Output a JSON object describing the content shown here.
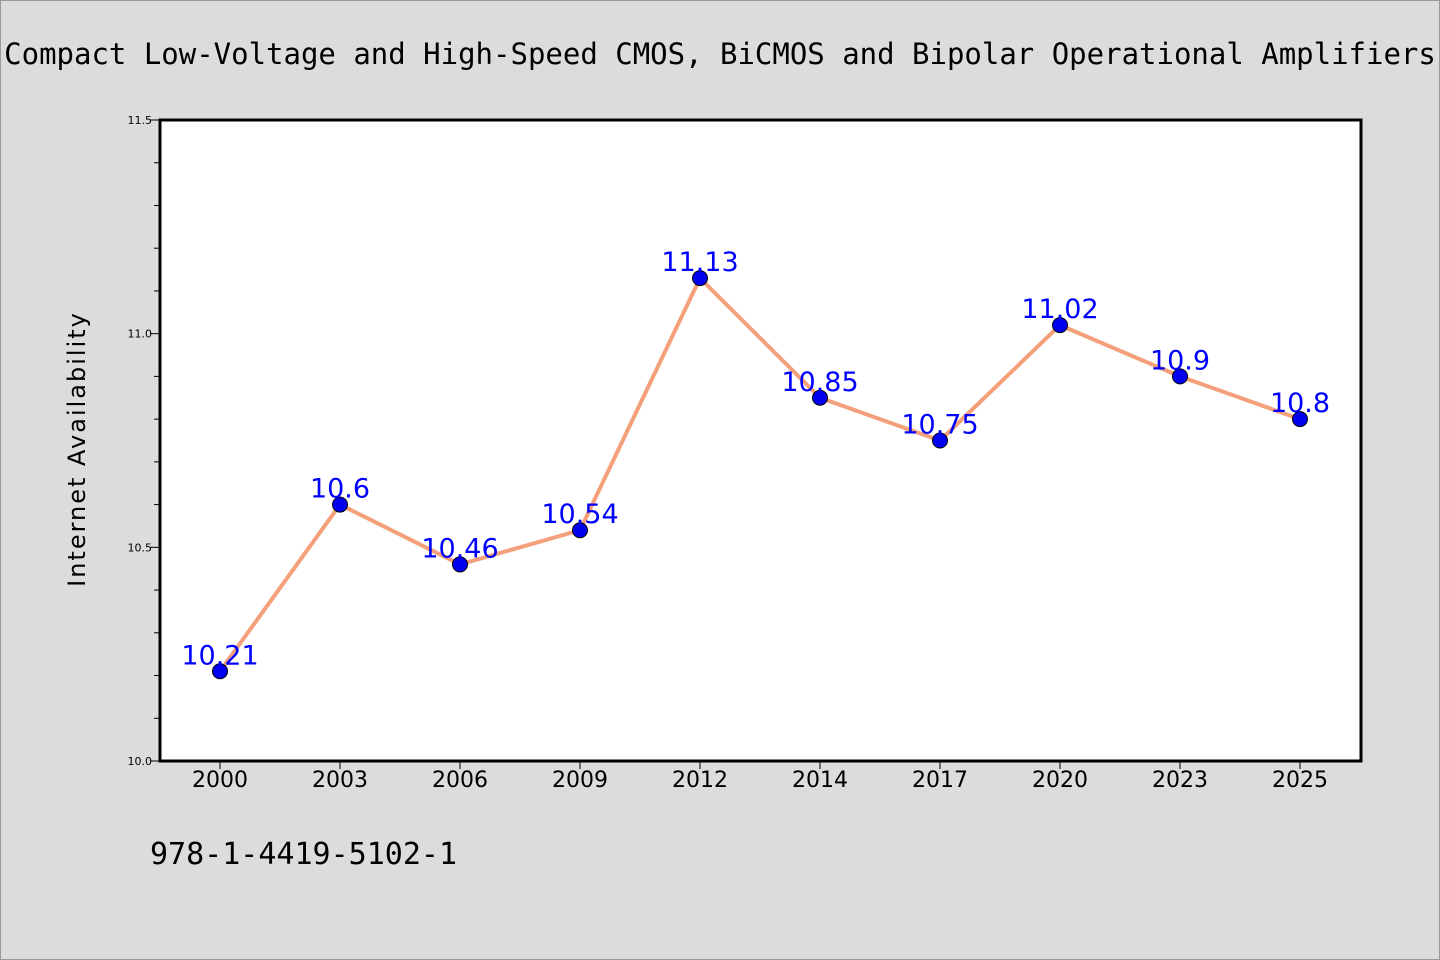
{
  "chart_data": {
    "type": "line",
    "title": "Compact Low-Voltage and High-Speed CMOS, BiCMOS and Bipolar Operational Amplifiers",
    "xlabel": "",
    "ylabel": "Internet Availability",
    "ylim": [
      10.0,
      11.5
    ],
    "yticks": [
      "10.0",
      "10.5",
      "11.0",
      "11.5"
    ],
    "categories": [
      "2000",
      "2003",
      "2006",
      "2009",
      "2012",
      "2014",
      "2017",
      "2020",
      "2023",
      "2025"
    ],
    "series": [
      {
        "values": [
          10.21,
          10.6,
          10.46,
          10.54,
          11.13,
          10.85,
          10.75,
          11.02,
          10.9,
          10.8
        ],
        "labels": [
          "10.21",
          "10.6",
          "10.46",
          "10.54",
          "11.13",
          "10.85",
          "10.75",
          "11.02",
          "10.9",
          "10.8"
        ],
        "line_color": "#f4a07a",
        "marker_color": "#0000ee",
        "label_color": "#0000ff"
      }
    ],
    "grid": false,
    "annotation": "978-1-4419-5102-1"
  },
  "colors": {
    "background": "#dcdcdc",
    "plot_background": "#ffffff",
    "axis": "#000000"
  }
}
